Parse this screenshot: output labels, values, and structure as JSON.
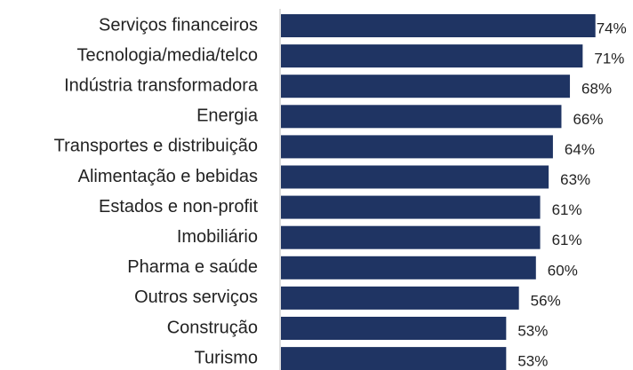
{
  "chart_data": {
    "type": "barh",
    "categories": [
      "Serviços financeiros",
      "Tecnologia/media/telco",
      "Indústria transformadora",
      "Energia",
      "Transportes e distribuição",
      "Alimentação e bebidas",
      "Estados e non-profit",
      "Imobiliário",
      "Pharma e saúde",
      "Outros serviços",
      "Construção",
      "Turismo"
    ],
    "values": [
      74,
      71,
      68,
      66,
      64,
      63,
      61,
      61,
      60,
      56,
      53,
      53
    ],
    "value_labels": [
      "74%",
      "71%",
      "68%",
      "66%",
      "64%",
      "63%",
      "61%",
      "61%",
      "60%",
      "56%",
      "53%",
      "53%"
    ],
    "color": "#1f3463"
  }
}
